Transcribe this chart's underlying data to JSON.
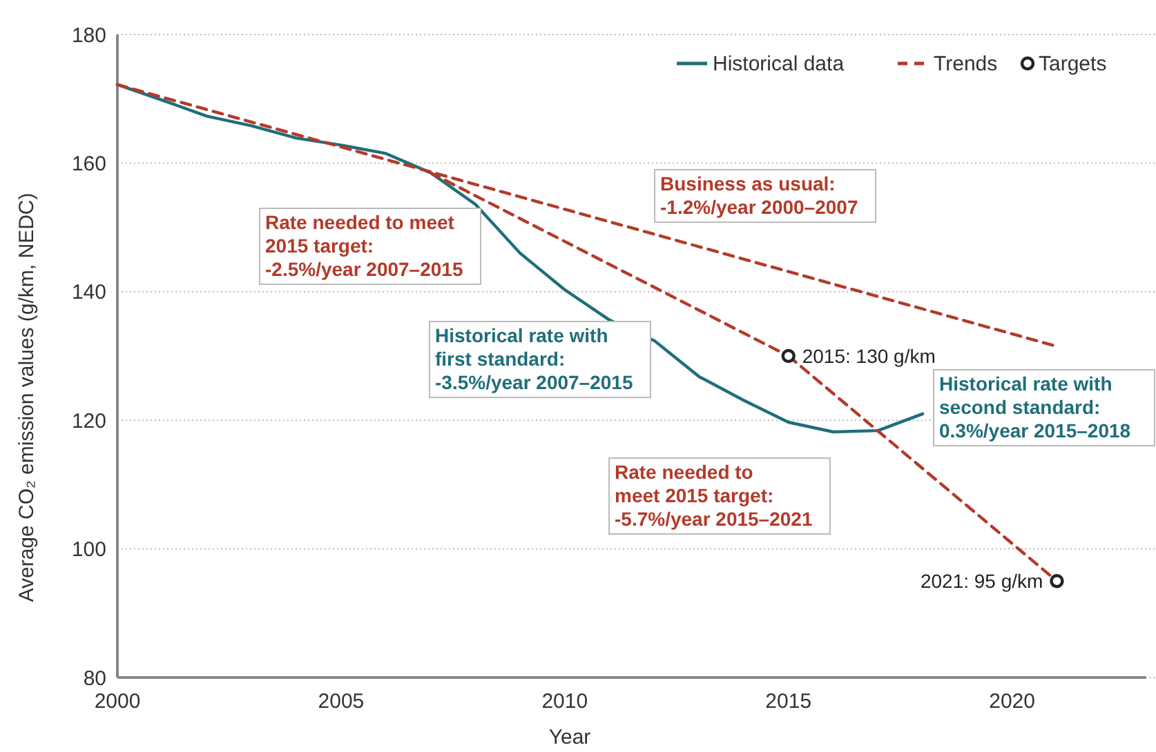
{
  "chart_data": {
    "type": "line",
    "xlabel": "Year",
    "ylabel": "Average CO₂ emission values (g/km, NEDC)",
    "xlim": [
      2000,
      2023
    ],
    "xticks": [
      2000,
      2005,
      2010,
      2015,
      2020
    ],
    "ylim": [
      80,
      180
    ],
    "yticks": [
      80,
      100,
      120,
      140,
      160,
      180
    ],
    "grid": "y",
    "legend": "top right",
    "series": [
      {
        "name": "Historical data",
        "type": "line",
        "color": "#1f6e7a",
        "line_style": "solid",
        "x": [
          2000,
          2001,
          2002,
          2003,
          2004,
          2005,
          2006,
          2007,
          2008,
          2009,
          2010,
          2011,
          2012,
          2013,
          2014,
          2015,
          2016,
          2017,
          2018
        ],
        "values": [
          172.2,
          169.8,
          167.3,
          165.8,
          163.9,
          162.8,
          161.5,
          158.5,
          153.6,
          146,
          140.3,
          135.6,
          132.4,
          126.8,
          123.1,
          119.7,
          118.2,
          118.4,
          121
        ]
      },
      {
        "name": "Trends",
        "color": "#b33a2a",
        "line_style": "dashed",
        "x": [
          2000,
          2021
        ],
        "values": [
          172.2,
          131.5
        ]
      },
      {
        "color": "#b33a2a",
        "line_style": "dashed",
        "x": [
          2007,
          2015
        ],
        "values": [
          158.5,
          130
        ]
      },
      {
        "color": "#b33a2a",
        "line_style": "dashed",
        "x": [
          2015,
          2021
        ],
        "values": [
          130,
          95
        ]
      },
      {
        "name": "Targets",
        "type": "scatter",
        "marker": "circle",
        "color": "#222222",
        "x": [
          2015,
          2021
        ],
        "values": [
          130,
          95
        ]
      }
    ],
    "annotations": [
      "Business as usual:\n-1.2%/year 2000–2007",
      "Rate needed to meet\n2015 target:\n-2.5%/year 2007–2015",
      "Historical rate with\nfirst standard:\n-3.5%/year 2007–2015",
      "Historical rate with\nsecond standard:\n0.3%/year 2015–2018",
      "Rate needed to\nmeet 2015 target:\n-5.7%/year 2015–2021",
      {
        "text": "2015: 130 g/km",
        "x": 2015,
        "y": 130
      },
      {
        "text": "2021: 95 g/km",
        "x": 2021,
        "y": 95
      }
    ]
  }
}
